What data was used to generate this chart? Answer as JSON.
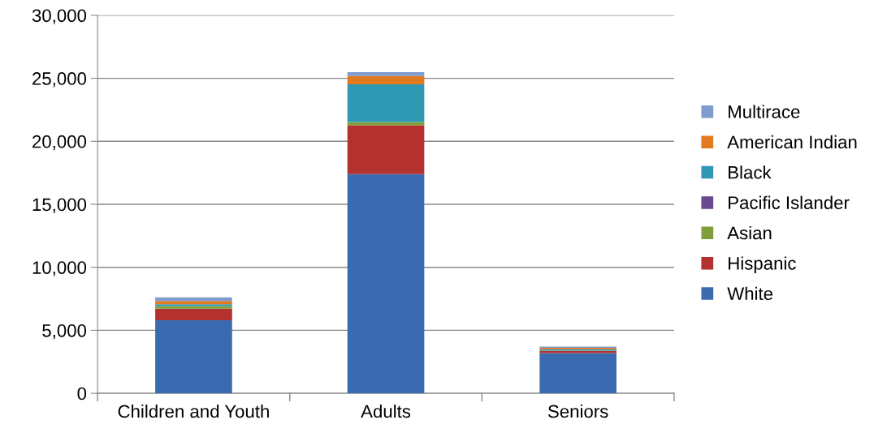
{
  "chart_data": {
    "type": "bar",
    "stacked": true,
    "categories": [
      "Children and Youth",
      "Adults",
      "Seniors"
    ],
    "series": [
      {
        "name": "White",
        "color": "#3a6bb0",
        "values": [
          5800,
          17400,
          3190
        ]
      },
      {
        "name": "Hispanic",
        "color": "#b3312f",
        "values": [
          920,
          3870,
          170
        ]
      },
      {
        "name": "Asian",
        "color": "#7f9f3a",
        "values": [
          200,
          260,
          30
        ]
      },
      {
        "name": "Pacific Islander",
        "color": "#6a4a8c",
        "values": [
          null,
          null,
          null
        ]
      },
      {
        "name": "Black",
        "color": "#2f99b3",
        "values": [
          150,
          3000,
          100
        ]
      },
      {
        "name": "American Indian",
        "color": "#e27a20",
        "values": [
          250,
          650,
          120
        ]
      },
      {
        "name": "Multirace",
        "color": "#7f9ccd",
        "values": [
          300,
          300,
          100
        ]
      }
    ],
    "ylim": [
      0,
      30000
    ],
    "yticks": [
      {
        "value": 0,
        "label": "0"
      },
      {
        "value": 5000,
        "label": "5,000"
      },
      {
        "value": 10000,
        "label": "10,000"
      },
      {
        "value": 15000,
        "label": "15,000"
      },
      {
        "value": 20000,
        "label": "20,000"
      },
      {
        "value": 25000,
        "label": "25,000"
      },
      {
        "value": 30000,
        "label": "30,000"
      }
    ],
    "grid": "y",
    "legend": "right"
  }
}
